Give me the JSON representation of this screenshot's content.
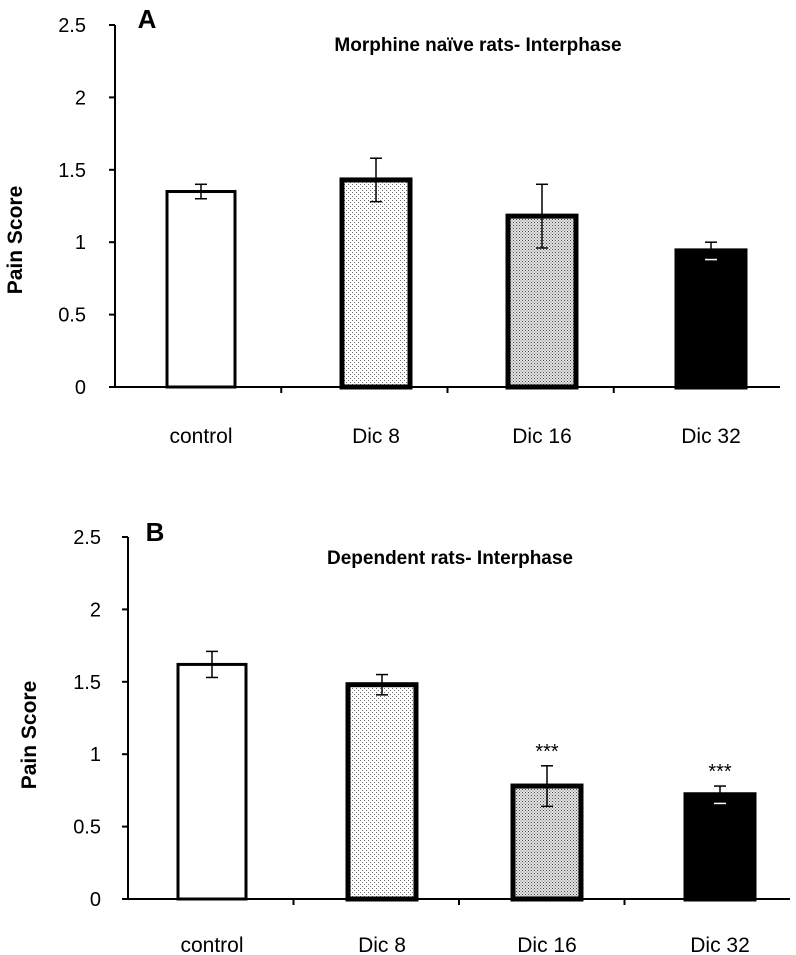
{
  "chart_data": [
    {
      "type": "bar",
      "panel_label": "A",
      "title": "Morphine naïve rats- Interphase",
      "ylabel": "Pain Score",
      "xlabel": "",
      "categories": [
        "control",
        "Dic 8",
        "Dic 16",
        "Dic 32"
      ],
      "values": [
        1.35,
        1.43,
        1.18,
        0.94
      ],
      "errors": [
        0.05,
        0.15,
        0.22,
        0.06
      ],
      "significance": [
        "",
        "",
        "",
        ""
      ],
      "fills": [
        "white",
        "light-dots",
        "dense-dots",
        "black"
      ],
      "ylim": [
        0,
        2.5
      ],
      "yticks": [
        "0",
        "0.5",
        "1",
        "1.5",
        "2",
        "2.5"
      ],
      "grid": false,
      "legend": "none"
    },
    {
      "type": "bar",
      "panel_label": "B",
      "title": "Dependent rats- Interphase",
      "ylabel": "Pain Score",
      "xlabel": "",
      "categories": [
        "control",
        "Dic 8",
        "Dic 16",
        "Dic 32"
      ],
      "values": [
        1.62,
        1.48,
        0.78,
        0.72
      ],
      "errors": [
        0.09,
        0.07,
        0.14,
        0.06
      ],
      "significance": [
        "",
        "",
        "***",
        "***"
      ],
      "fills": [
        "white",
        "light-dots",
        "dense-dots",
        "black"
      ],
      "ylim": [
        0,
        2.5
      ],
      "yticks": [
        "0",
        "0.5",
        "1",
        "1.5",
        "2",
        "2.5"
      ],
      "grid": false,
      "legend": "none"
    }
  ],
  "colors": {
    "axis": "#000000",
    "bar_outline": "#000000",
    "dark_fill": "#000000"
  }
}
